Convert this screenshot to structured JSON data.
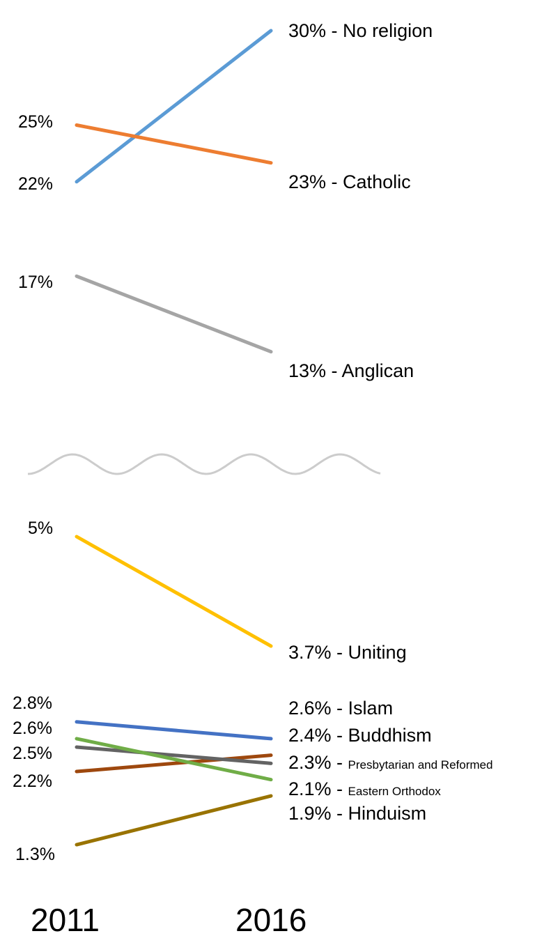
{
  "chart_data": {
    "type": "line",
    "x": [
      "2011",
      "2016"
    ],
    "series": [
      {
        "name": "No religion",
        "values": [
          22,
          30
        ],
        "left_label": "22%",
        "right_value": "30%",
        "separator": " - ",
        "color": "#5b9bd5",
        "small_name": false
      },
      {
        "name": "Catholic",
        "values": [
          25,
          23
        ],
        "left_label": "25%",
        "right_value": "23%",
        "separator": " - ",
        "color": "#ed7d31",
        "small_name": false
      },
      {
        "name": "Anglican",
        "values": [
          17,
          13
        ],
        "left_label": "17%",
        "right_value": "13%",
        "separator": " - ",
        "color": "#a5a5a5",
        "small_name": false
      },
      {
        "name": "Uniting",
        "values": [
          5,
          3.7
        ],
        "left_label": "5%",
        "right_value": "3.7%",
        "separator": " - ",
        "color": "#ffc000",
        "small_name": false
      },
      {
        "name": "Islam",
        "values": [
          2.8,
          2.6
        ],
        "left_label": "2.8%",
        "right_value": "2.6%",
        "separator": " - ",
        "color": "#4472c4",
        "small_name": false
      },
      {
        "name": "Buddhism",
        "values": [
          2.2,
          2.4
        ],
        "left_label": "2.2%",
        "right_value": "2.4%",
        "separator": " - ",
        "color": "#9e480e",
        "small_name": false
      },
      {
        "name": "Presbytarian and Reformed",
        "values": [
          2.5,
          2.3
        ],
        "left_label": "2.5%",
        "right_value": "2.3%",
        "separator": " - ",
        "color": "#636363",
        "small_name": true
      },
      {
        "name": "Eastern Orthodox",
        "values": [
          2.6,
          2.1
        ],
        "left_label": "2.6%",
        "right_value": "2.1%",
        "separator": " - ",
        "color": "#70ad47",
        "small_name": true
      },
      {
        "name": "Hinduism",
        "values": [
          1.3,
          1.9
        ],
        "left_label": "1.3%",
        "right_value": "1.9%",
        "separator": " - ",
        "color": "#997300",
        "small_name": false
      }
    ],
    "axis_break": {
      "between": [
        5,
        13
      ],
      "style": "wavy"
    },
    "xlabel": "",
    "ylabel": "",
    "title": "",
    "grid": false,
    "legend": "none"
  }
}
